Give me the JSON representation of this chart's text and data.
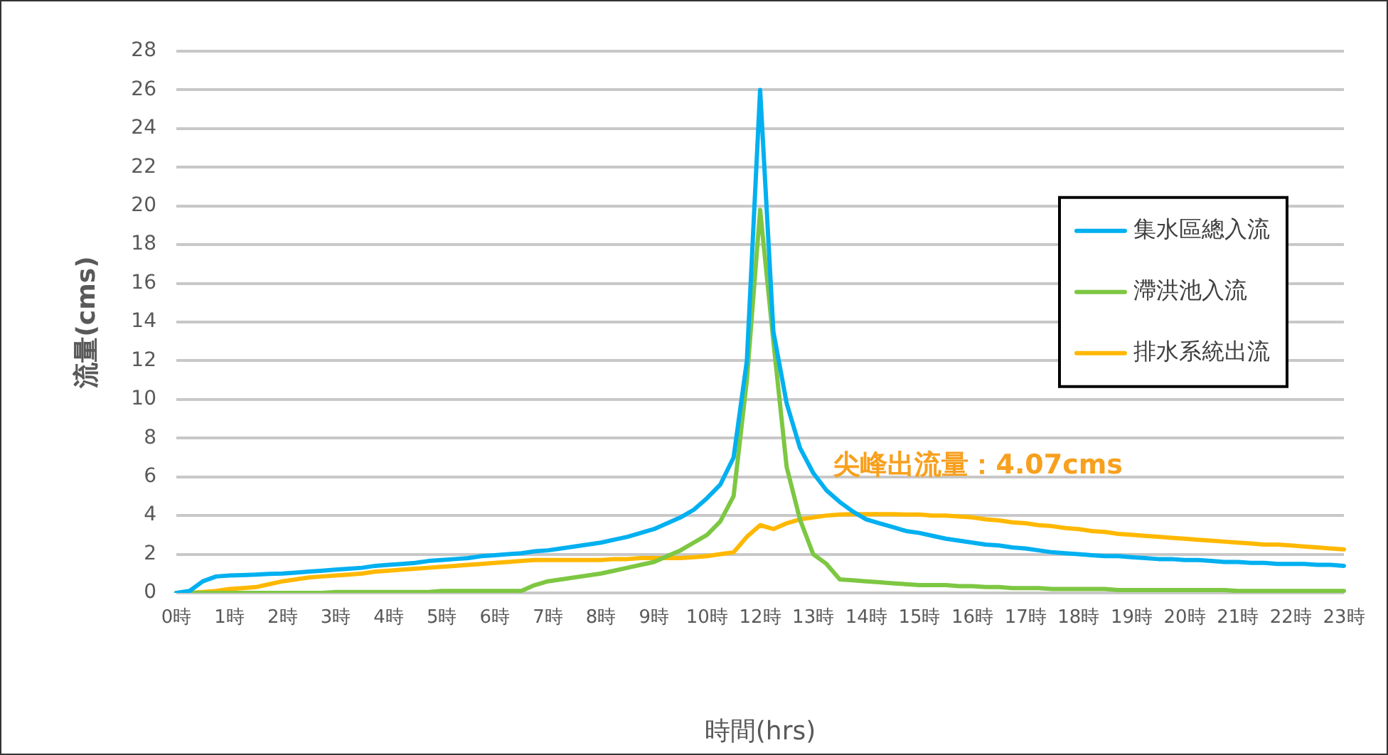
{
  "chart_data": {
    "type": "line",
    "xlabel": "時間(hrs)",
    "ylabel": "流量(cms)",
    "categories": [
      "0時",
      null,
      null,
      null,
      "1時",
      null,
      null,
      null,
      "2時",
      null,
      null,
      null,
      "3時",
      null,
      null,
      null,
      "4時",
      null,
      null,
      null,
      "5時",
      null,
      null,
      null,
      "6時",
      null,
      null,
      null,
      "7時",
      null,
      null,
      null,
      "8時",
      null,
      null,
      null,
      "9時",
      null,
      null,
      null,
      "10時",
      null,
      null,
      null,
      "12時",
      null,
      null,
      null,
      "13時",
      null,
      null,
      null,
      "14時",
      null,
      null,
      null,
      "15時",
      null,
      null,
      null,
      "16時",
      null,
      null,
      null,
      "17時",
      null,
      null,
      null,
      "18時",
      null,
      null,
      null,
      "19時",
      null,
      null,
      null,
      "20時",
      null,
      null,
      null,
      "21時",
      null,
      null,
      null,
      "22時",
      null,
      null,
      null,
      "23時"
    ],
    "ylim": [
      0,
      28
    ],
    "yticks": [
      0,
      2,
      4,
      6,
      8,
      10,
      12,
      14,
      16,
      18,
      20,
      22,
      24,
      26,
      28
    ],
    "grid": "y",
    "legend": "right",
    "marker": "none",
    "line_style": "solid",
    "annotations": [
      "尖峰出流量：4.07cms"
    ],
    "series": [
      {
        "name": "集水區總入流",
        "color": "#00b0f0",
        "values": [
          0,
          0.1,
          0.6,
          0.85,
          0.9,
          0.92,
          0.95,
          0.98,
          1.0,
          1.05,
          1.1,
          1.15,
          1.2,
          1.25,
          1.3,
          1.4,
          1.45,
          1.5,
          1.55,
          1.65,
          1.7,
          1.75,
          1.8,
          1.9,
          1.95,
          2.0,
          2.05,
          2.15,
          2.2,
          2.3,
          2.4,
          2.5,
          2.6,
          2.75,
          2.9,
          3.1,
          3.3,
          3.6,
          3.9,
          4.3,
          4.9,
          5.6,
          7,
          12,
          26,
          13.5,
          9.8,
          7.5,
          6.2,
          5.3,
          4.7,
          4.2,
          3.8,
          3.6,
          3.4,
          3.2,
          3.1,
          2.95,
          2.8,
          2.7,
          2.6,
          2.5,
          2.45,
          2.35,
          2.3,
          2.2,
          2.1,
          2.05,
          2.0,
          1.95,
          1.9,
          1.9,
          1.85,
          1.8,
          1.75,
          1.75,
          1.7,
          1.7,
          1.65,
          1.6,
          1.6,
          1.55,
          1.55,
          1.5,
          1.5,
          1.5,
          1.45,
          1.45,
          1.4
        ]
      },
      {
        "name": "滯洪池入流",
        "color": "#7dc742",
        "values": [
          0,
          0,
          0,
          0,
          0,
          0,
          0,
          0,
          0,
          0,
          0,
          0,
          0.05,
          0.05,
          0.05,
          0.05,
          0.05,
          0.05,
          0.05,
          0.05,
          0.1,
          0.1,
          0.1,
          0.1,
          0.1,
          0.1,
          0.1,
          0.4,
          0.6,
          0.7,
          0.8,
          0.9,
          1.0,
          1.15,
          1.3,
          1.45,
          1.6,
          1.9,
          2.2,
          2.6,
          3.0,
          3.7,
          5.0,
          11,
          19.8,
          13,
          6.5,
          3.8,
          2.0,
          1.5,
          0.7,
          0.65,
          0.6,
          0.55,
          0.5,
          0.45,
          0.4,
          0.4,
          0.4,
          0.35,
          0.35,
          0.3,
          0.3,
          0.25,
          0.25,
          0.25,
          0.2,
          0.2,
          0.2,
          0.2,
          0.2,
          0.15,
          0.15,
          0.15,
          0.15,
          0.15,
          0.15,
          0.15,
          0.15,
          0.15,
          0.1,
          0.1,
          0.1,
          0.1,
          0.1,
          0.1,
          0.1,
          0.1,
          0.1
        ]
      },
      {
        "name": "排水系統出流",
        "color": "#ffb800",
        "values": [
          0,
          0,
          0.05,
          0.1,
          0.2,
          0.25,
          0.3,
          0.45,
          0.6,
          0.7,
          0.8,
          0.85,
          0.9,
          0.95,
          1.0,
          1.1,
          1.15,
          1.2,
          1.25,
          1.3,
          1.35,
          1.4,
          1.45,
          1.5,
          1.55,
          1.6,
          1.65,
          1.7,
          1.7,
          1.7,
          1.7,
          1.7,
          1.7,
          1.75,
          1.75,
          1.8,
          1.8,
          1.8,
          1.8,
          1.85,
          1.9,
          2.0,
          2.1,
          2.9,
          3.5,
          3.3,
          3.6,
          3.8,
          3.9,
          4.0,
          4.05,
          4.07,
          4.07,
          4.07,
          4.07,
          4.05,
          4.05,
          4.0,
          4.0,
          3.95,
          3.9,
          3.8,
          3.75,
          3.65,
          3.6,
          3.5,
          3.45,
          3.35,
          3.3,
          3.2,
          3.15,
          3.05,
          3.0,
          2.95,
          2.9,
          2.85,
          2.8,
          2.75,
          2.7,
          2.65,
          2.6,
          2.55,
          2.5,
          2.5,
          2.45,
          2.4,
          2.35,
          2.3,
          2.25
        ]
      }
    ]
  }
}
